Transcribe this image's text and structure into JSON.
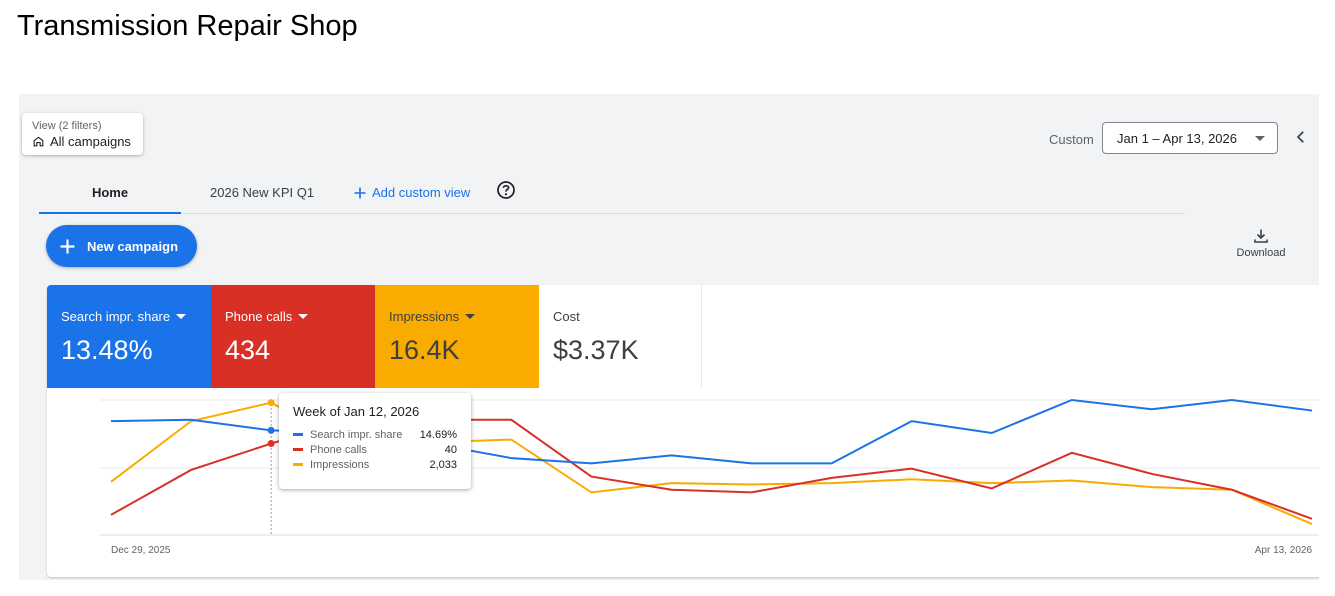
{
  "page_title": "Transmission Repair Shop",
  "view": {
    "filters_label": "View (2 filters)",
    "name": "All campaigns",
    "icon": "home-icon"
  },
  "date": {
    "label": "Custom",
    "range": "Jan 1 – Apr 13, 2026"
  },
  "tabs": [
    {
      "label": "Home",
      "active": true
    },
    {
      "label": "2026 New KPI Q1",
      "active": false
    },
    {
      "label": "Add custom view",
      "active": false
    }
  ],
  "new_campaign_label": "New campaign",
  "download_label": "Download",
  "metrics": [
    {
      "label": "Search impr. share",
      "value": "13.48%",
      "color": "#1a73e8"
    },
    {
      "label": "Phone calls",
      "value": "434",
      "color": "#d93025"
    },
    {
      "label": "Impressions",
      "value": "16.4K",
      "color": "#f9ab00"
    },
    {
      "label": "Cost",
      "value": "$3.37K",
      "color": "#ffffff"
    }
  ],
  "tooltip": {
    "title": "Week of Jan 12, 2026",
    "rows": [
      {
        "name": "Search impr. share",
        "value": "14.69%",
        "color": "#1a73e8"
      },
      {
        "name": "Phone calls",
        "value": "40",
        "color": "#d93025"
      },
      {
        "name": "Impressions",
        "value": "2,033",
        "color": "#f9ab00"
      }
    ]
  },
  "chart_data": {
    "type": "line",
    "x_start_label": "Dec 29, 2025",
    "x_end_label": "Apr 13, 2026",
    "highlight_index": 2,
    "series": [
      {
        "name": "Search impr. share",
        "color": "#1a73e8",
        "values": [
          0.84,
          0.85,
          0.77,
          0.75,
          0.67,
          0.56,
          0.52,
          0.58,
          0.52,
          0.52,
          0.84,
          0.75,
          1.0,
          0.93,
          1.0,
          0.92
        ]
      },
      {
        "name": "Phone calls",
        "color": "#d93025",
        "values": [
          0.13,
          0.47,
          0.67,
          0.85,
          0.85,
          0.85,
          0.42,
          0.32,
          0.3,
          0.41,
          0.48,
          0.33,
          0.6,
          0.44,
          0.32,
          0.1
        ]
      },
      {
        "name": "Impressions",
        "color": "#f9ab00",
        "values": [
          0.38,
          0.84,
          0.98,
          0.65,
          0.68,
          0.7,
          0.3,
          0.37,
          0.36,
          0.37,
          0.4,
          0.37,
          0.39,
          0.34,
          0.32,
          0.06
        ]
      }
    ]
  }
}
